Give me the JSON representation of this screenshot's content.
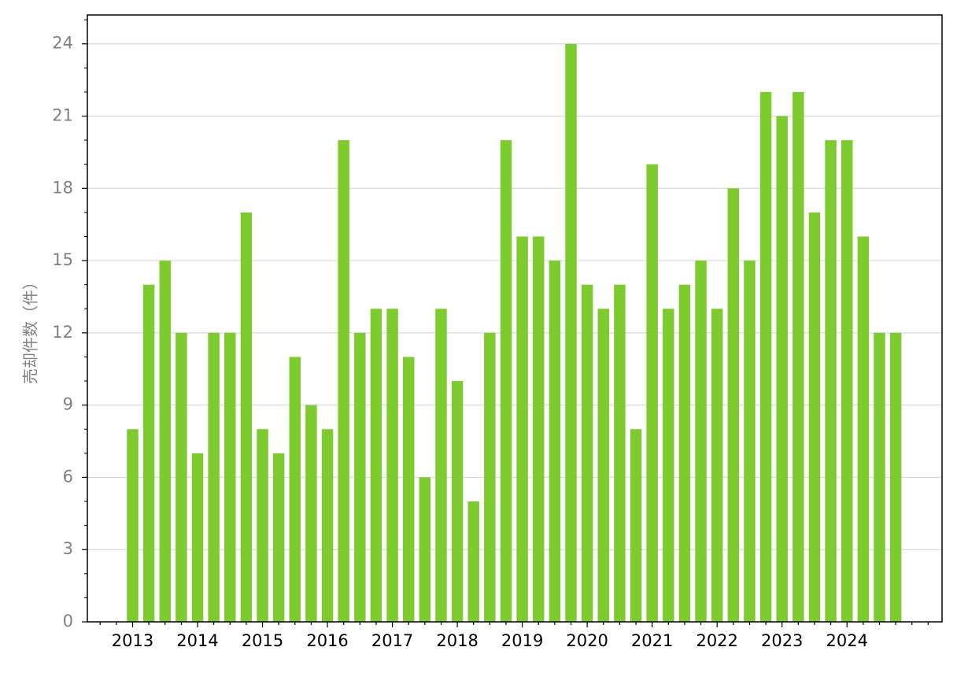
{
  "chart_data": {
    "type": "bar",
    "title": "",
    "xlabel": "",
    "ylabel": "売却件数（件）",
    "ylim": [
      0,
      25.2
    ],
    "yticks": [
      0,
      3,
      6,
      9,
      12,
      15,
      18,
      21,
      24
    ],
    "year_labels": [
      "2013",
      "2014",
      "2015",
      "2016",
      "2017",
      "2018",
      "2019",
      "2020",
      "2021",
      "2022",
      "2023",
      "2024"
    ],
    "grid": "horizontal",
    "bar_color": "#7ecb2f",
    "series": [
      {
        "values": [
          8,
          14,
          15,
          12,
          7,
          12,
          12,
          17,
          8,
          7,
          11,
          9,
          8,
          20,
          12,
          13,
          13,
          11,
          6,
          13,
          10,
          5,
          12,
          20,
          16,
          16,
          15,
          24,
          14,
          13,
          14,
          8,
          19,
          13,
          14,
          15,
          13,
          18,
          15,
          22,
          21,
          22,
          17,
          20,
          20,
          16,
          12,
          12
        ]
      }
    ]
  }
}
